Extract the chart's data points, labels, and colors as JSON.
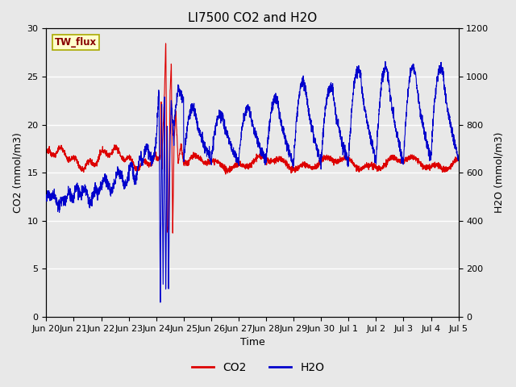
{
  "title": "LI7500 CO2 and H2O",
  "xlabel": "Time",
  "ylabel_left": "CO2 (mmol/m3)",
  "ylabel_right": "H2O (mmol/m3)",
  "ylim_left": [
    0,
    30
  ],
  "ylim_right": [
    0,
    1200
  ],
  "yticks_left": [
    0,
    5,
    10,
    15,
    20,
    25,
    30
  ],
  "yticks_right": [
    0,
    200,
    400,
    600,
    800,
    1000,
    1200
  ],
  "background_color": "#e8e8e8",
  "co2_color": "#dd0000",
  "h2o_color": "#0000cc",
  "legend_co2": "CO2",
  "legend_h2o": "H2O",
  "site_label": "TW_flux",
  "site_label_color": "#880000",
  "site_label_bg": "#ffffcc",
  "site_label_border": "#aaaa00",
  "x_tick_labels": [
    "Jun 20",
    "Jun 21",
    "Jun 22",
    "Jun 23",
    "Jun 24",
    "Jun 25",
    "Jun 26",
    "Jun 27",
    "Jun 28",
    "Jun 29",
    "Jun 30",
    "Jul 1",
    "Jul 2",
    "Jul 3",
    "Jul 4",
    "Jul 5"
  ],
  "title_fontsize": 11,
  "axis_label_fontsize": 9,
  "tick_fontsize": 8
}
